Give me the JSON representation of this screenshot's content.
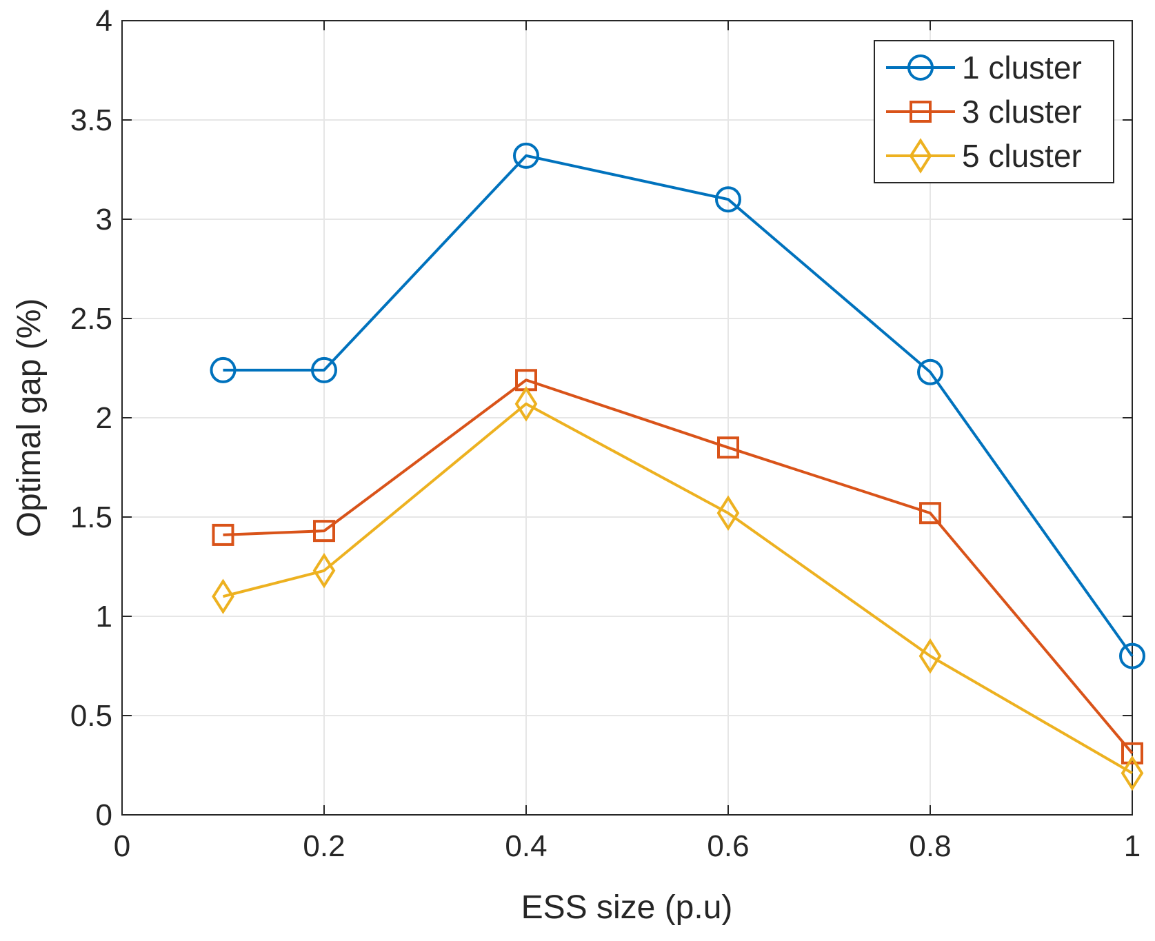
{
  "chart_data": {
    "type": "line",
    "title": "",
    "xlabel": "ESS size (p.u)",
    "ylabel": "Optimal gap (%)",
    "xlim": [
      0,
      1
    ],
    "ylim": [
      0,
      4
    ],
    "xticks": [
      "0",
      "0.2",
      "0.4",
      "0.6",
      "0.8",
      "1"
    ],
    "yticks": [
      "0",
      "0.5",
      "1",
      "1.5",
      "2",
      "2.5",
      "3",
      "3.5",
      "4"
    ],
    "grid": true,
    "legend_position": "top-right",
    "x": [
      0.1,
      0.2,
      0.4,
      0.6,
      0.8,
      1.0
    ],
    "series": [
      {
        "name": "1 cluster",
        "marker": "circle",
        "color": "#0072BD",
        "values": [
          2.24,
          2.24,
          3.32,
          3.1,
          2.23,
          0.8
        ]
      },
      {
        "name": "3 cluster",
        "marker": "square",
        "color": "#D95319",
        "values": [
          1.41,
          1.43,
          2.19,
          1.85,
          1.52,
          0.31
        ]
      },
      {
        "name": "5 cluster",
        "marker": "diamond",
        "color": "#EDB120",
        "values": [
          1.1,
          1.23,
          2.07,
          1.52,
          0.8,
          0.21
        ]
      }
    ]
  }
}
